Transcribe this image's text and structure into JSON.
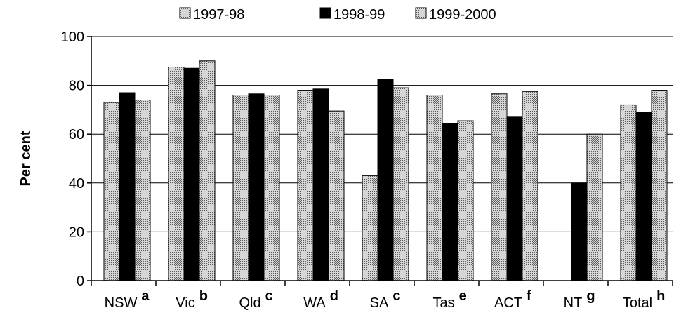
{
  "chart_data": {
    "type": "bar",
    "title": "",
    "xlabel": "",
    "ylabel": "Per cent",
    "ylim": [
      0,
      100
    ],
    "yticks": [
      0,
      20,
      40,
      60,
      80,
      100
    ],
    "grid": true,
    "legend_position": "top",
    "categories": [
      "NSW",
      "Vic",
      "Qld",
      "WA",
      "SA",
      "Tas",
      "ACT",
      "NT",
      "Total"
    ],
    "category_notes": [
      "a",
      "b",
      "c",
      "d",
      "c",
      "e",
      "f",
      "g",
      "h"
    ],
    "series": [
      {
        "name": "1997-98",
        "pattern": "hatched-light",
        "values": [
          73,
          87.5,
          76,
          78,
          43,
          76,
          76.5,
          null,
          72
        ]
      },
      {
        "name": "1998-99",
        "pattern": "solid-black",
        "values": [
          77,
          87,
          76.5,
          78.5,
          82.5,
          64.5,
          67,
          40,
          69
        ]
      },
      {
        "name": "1999-2000",
        "pattern": "hatched-light",
        "values": [
          74,
          90,
          76,
          69.5,
          79,
          65.5,
          77.5,
          60,
          78
        ]
      }
    ]
  }
}
